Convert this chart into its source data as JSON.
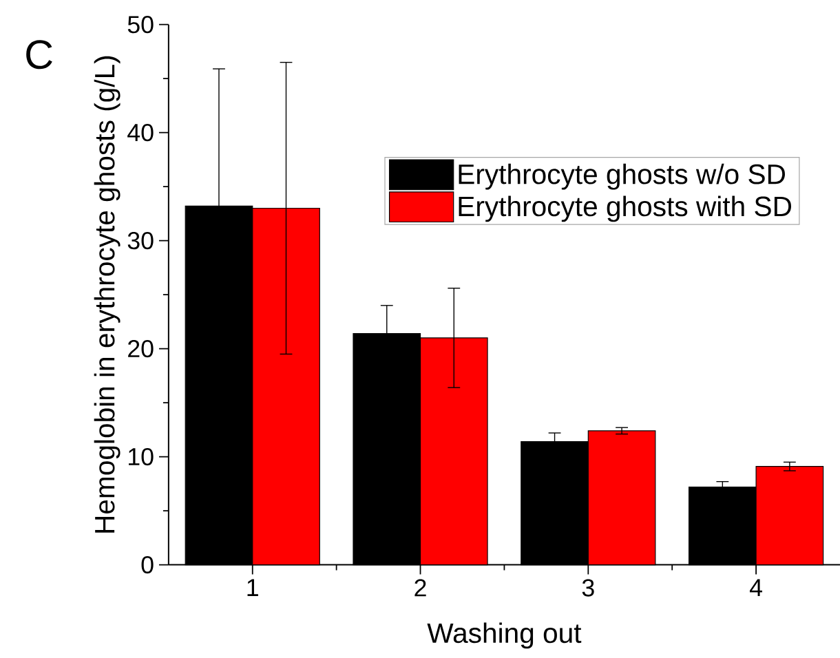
{
  "chart_data": {
    "type": "bar",
    "title": "C",
    "xlabel": "Washing out",
    "ylabel": "Hemoglobin in erythrocyte ghosts (g/L)",
    "categories": [
      "1",
      "2",
      "3",
      "4"
    ],
    "series": [
      {
        "name": "Erythrocyte ghosts w/o SD",
        "color": "#000000",
        "values": [
          33.2,
          21.4,
          11.4,
          7.2
        ],
        "errors": [
          12.7,
          2.6,
          0.8,
          0.5
        ]
      },
      {
        "name": "Erythrocyte ghosts with SD",
        "color": "#ff0000",
        "values": [
          33.0,
          21.0,
          12.4,
          9.1
        ],
        "errors": [
          13.5,
          4.6,
          0.3,
          0.4
        ]
      }
    ],
    "ylim": [
      0,
      50
    ],
    "yticks": [
      0,
      {
        "value": 5,
        "label": null
      },
      10,
      {
        "value": 15,
        "label": null
      },
      20,
      {
        "value": 25,
        "label": null
      },
      30,
      {
        "value": 35,
        "label": null
      },
      40,
      {
        "value": 45,
        "label": null
      },
      50
    ],
    "legend": "top right"
  }
}
